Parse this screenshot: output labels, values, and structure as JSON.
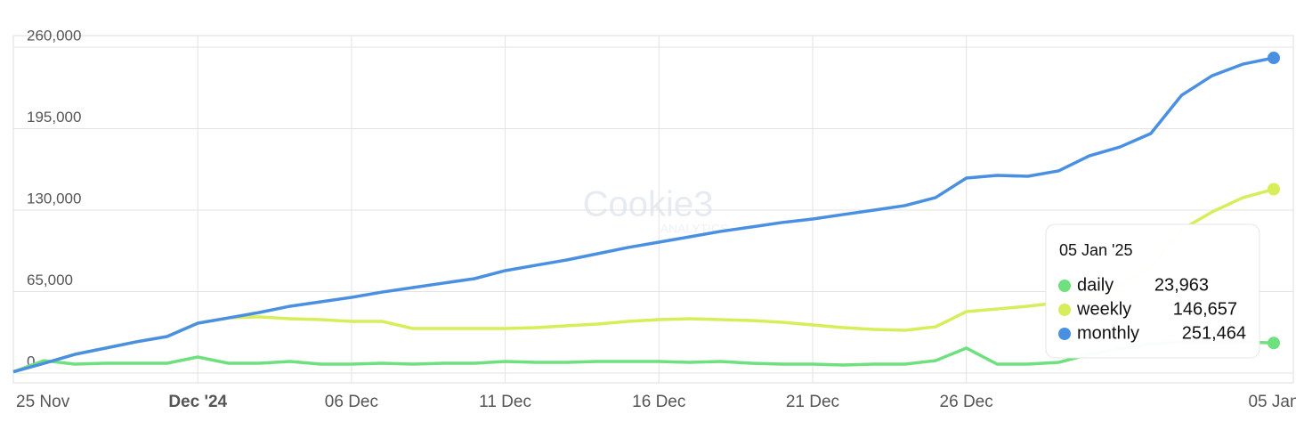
{
  "chart_data": {
    "type": "line",
    "watermark": "Cookie3",
    "watermark_sub": "ANALYTICS",
    "categories": [
      "25 Nov",
      null,
      null,
      null,
      null,
      null,
      "Dec '24",
      null,
      null,
      null,
      null,
      "06 Dec",
      null,
      null,
      null,
      null,
      "11 Dec",
      null,
      null,
      null,
      null,
      "16 Dec",
      null,
      null,
      null,
      null,
      "21 Dec",
      null,
      null,
      null,
      null,
      "26 Dec",
      null,
      null,
      null,
      null,
      null,
      null,
      null,
      null,
      null,
      "05 Jan"
    ],
    "series": [
      {
        "name": "daily",
        "color": "#6ee07e",
        "values": [
          1000,
          9900,
          7100,
          7800,
          7800,
          7800,
          12800,
          7800,
          7800,
          9200,
          7100,
          7100,
          7800,
          7100,
          7800,
          7800,
          9200,
          8500,
          8500,
          9200,
          9200,
          9200,
          8500,
          9200,
          7800,
          7100,
          7100,
          6400,
          7100,
          7100,
          9900,
          19900,
          7100,
          7100,
          8500,
          14900,
          19200,
          23400,
          24900,
          24900,
          24900,
          23963
        ]
      },
      {
        "name": "weekly",
        "color": "#d7ee5a",
        "values": [
          1000,
          7800,
          14900,
          19900,
          24900,
          29100,
          39800,
          44000,
          44800,
          43300,
          42600,
          41200,
          41200,
          35500,
          35500,
          35500,
          35500,
          36200,
          37700,
          39100,
          41200,
          42600,
          43300,
          42600,
          41900,
          40500,
          38400,
          36200,
          34800,
          34100,
          36900,
          49000,
          51100,
          53300,
          56100,
          61100,
          70300,
          84500,
          114400,
          128600,
          140000,
          146657
        ]
      },
      {
        "name": "monthly",
        "color": "#4a90e2",
        "values": [
          1000,
          7800,
          14900,
          19900,
          24900,
          29100,
          39800,
          44000,
          48300,
          53300,
          56800,
          60400,
          64600,
          68200,
          71800,
          75300,
          81700,
          86000,
          90200,
          95200,
          100200,
          104400,
          108700,
          113000,
          116500,
          120100,
          122900,
          126500,
          130000,
          133600,
          140000,
          155600,
          157700,
          157000,
          161300,
          173300,
          180400,
          191100,
          221600,
          237300,
          246500,
          251464
        ]
      }
    ],
    "ylim": [
      0,
      260000
    ],
    "yticks": [
      0,
      {
        "value": 65000,
        "label": "65,000"
      },
      {
        "value": 130000,
        "label": "130,000"
      },
      {
        "value": 195000,
        "label": "195,000"
      },
      {
        "value": 260000,
        "label": "260,000"
      }
    ],
    "grid": true,
    "tooltip": {
      "title": "05 Jan '25",
      "value_labels": [
        "23,963",
        "146,657",
        "251,464"
      ]
    }
  }
}
